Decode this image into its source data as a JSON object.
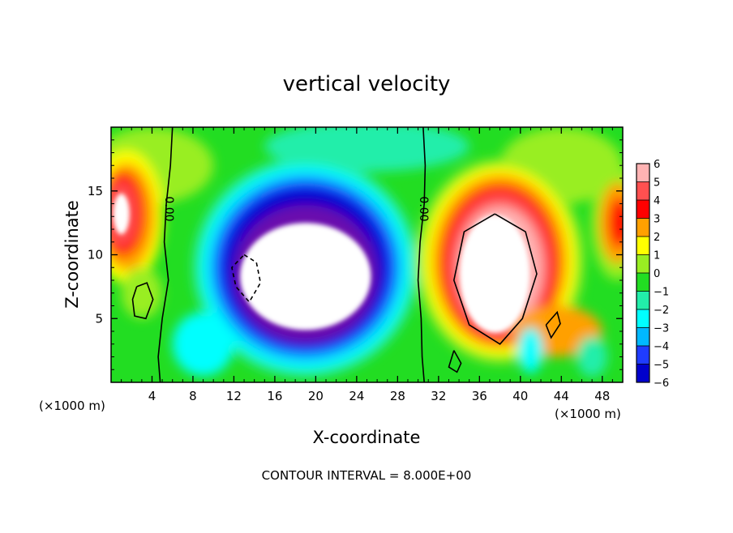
{
  "chart_data": {
    "type": "heatmap",
    "title": "vertical velocity",
    "xlabel": "X-coordinate",
    "ylabel": "Z-coordinate",
    "x_unit": "(×1000 m)",
    "y_unit": "(×1000 m)",
    "xlim": [
      0,
      50
    ],
    "ylim": [
      0,
      20
    ],
    "x_ticks": [
      4,
      8,
      12,
      16,
      20,
      24,
      28,
      32,
      36,
      40,
      44,
      48
    ],
    "y_ticks": [
      5,
      10,
      15
    ],
    "footer": "CONTOUR INTERVAL = 8.000E+00",
    "contour_label": "0.00",
    "colorbar": {
      "levels": [
        6,
        5,
        4,
        3,
        2,
        1,
        0,
        -1,
        -2,
        -3,
        -4,
        -5,
        -6
      ],
      "labels": [
        "6",
        "5",
        "4",
        "3",
        "2",
        "1",
        "0",
        "−1",
        "−2",
        "−3",
        "−4",
        "−5",
        "−6"
      ],
      "colors": [
        "#ffb3b3",
        "#ff5050",
        "#ff0000",
        "#ffa000",
        "#ffff00",
        "#99ee22",
        "#22dd22",
        "#22eeaa",
        "#00ffff",
        "#00b8ff",
        "#1f3cff",
        "#0000cc",
        "#6a0dad"
      ],
      "over_color": "#ffffff",
      "under_color": "#ffffff"
    },
    "features": [
      {
        "name": "updraft-left-edge",
        "x": 1.5,
        "z": 13.0,
        "peak": 8
      },
      {
        "name": "downdraft-core",
        "x": 18.5,
        "z": 8.5,
        "peak": -10
      },
      {
        "name": "updraft-core",
        "x": 37.5,
        "z": 8.5,
        "peak": 12
      },
      {
        "name": "updraft-right-edge",
        "x": 49.5,
        "z": 12.5,
        "peak": 4
      }
    ],
    "grid": false
  }
}
